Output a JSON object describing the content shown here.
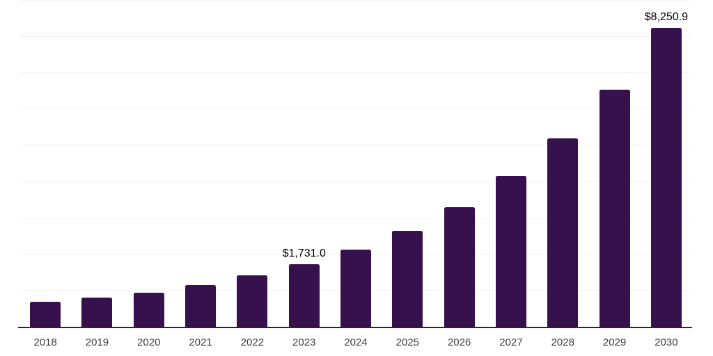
{
  "chart_data": {
    "type": "bar",
    "title": "",
    "xlabel": "",
    "ylabel": "",
    "categories": [
      "2018",
      "2019",
      "2020",
      "2021",
      "2022",
      "2023",
      "2024",
      "2025",
      "2026",
      "2027",
      "2028",
      "2029",
      "2030"
    ],
    "values": [
      690,
      805,
      950,
      1150,
      1415,
      1731.0,
      2130,
      2655,
      3295,
      4160,
      5200,
      6540,
      8250.9
    ],
    "annotations": [
      null,
      null,
      null,
      null,
      null,
      "$1,731.0",
      null,
      null,
      null,
      null,
      null,
      null,
      "$8,250.9"
    ],
    "ylim": [
      0,
      9000
    ],
    "gridline_step": 1000,
    "grid": "horizontal",
    "legend": "none",
    "y_axis_labels_visible": false,
    "colors": {
      "bar": "#36114d",
      "axis": "#262626",
      "gridline": "#f2f2f2",
      "value_label": "#000000",
      "tick_label": "#3d3d3d",
      "background": "#ffffff"
    }
  }
}
